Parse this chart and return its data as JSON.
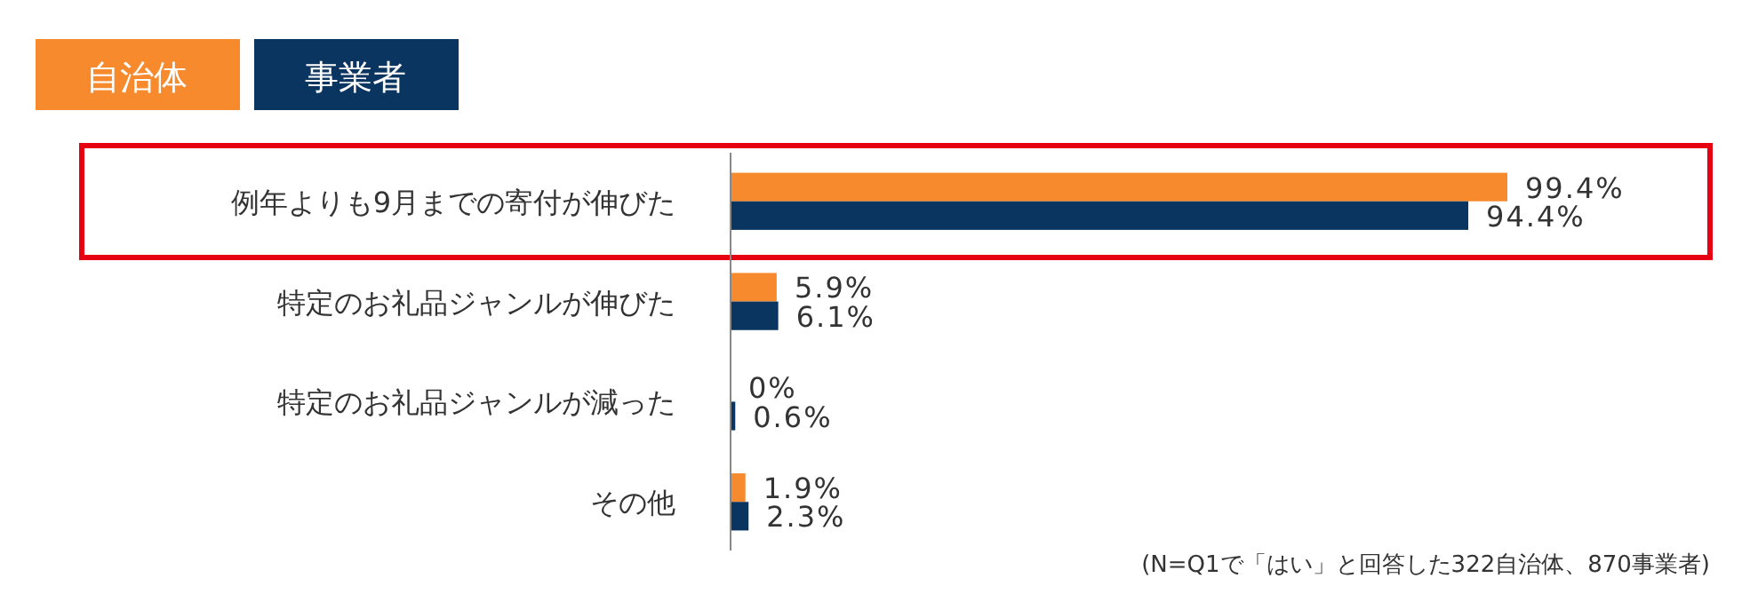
{
  "chart_data": {
    "type": "bar",
    "orientation": "horizontal",
    "categories": [
      "例年よりも9月までの寄付が伸びた",
      "特定のお礼品ジャンルが伸びた",
      "特定のお礼品ジャンルが減った",
      "その他"
    ],
    "series": [
      {
        "name": "自治体",
        "color": "#f78a2c",
        "values": [
          99.4,
          5.9,
          0,
          1.9
        ],
        "value_labels": [
          "99.4%",
          "5.9%",
          "0%",
          "1.9%"
        ]
      },
      {
        "name": "事業者",
        "color": "#0b3561",
        "values": [
          94.4,
          6.1,
          0.6,
          2.3
        ],
        "value_labels": [
          "94.4%",
          "6.1%",
          "0.6%",
          "2.3%"
        ]
      }
    ],
    "legend": "top left",
    "annotations": [
      "(N=Q1で「はい」と回答した322自治体、870事業者)"
    ]
  }
}
